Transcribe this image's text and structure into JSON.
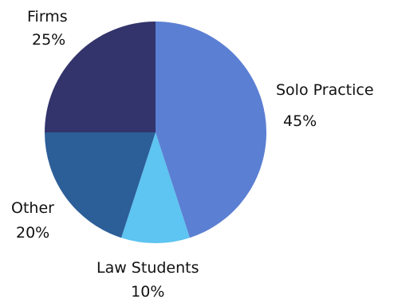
{
  "chart_data": {
    "type": "pie",
    "title": "",
    "slices": [
      {
        "label": "Solo Practice",
        "value": 45,
        "display": "45%",
        "color": "#5b7fd3"
      },
      {
        "label": "Law Students",
        "value": 10,
        "display": "10%",
        "color": "#5ec4f1"
      },
      {
        "label": "Other",
        "value": 20,
        "display": "20%",
        "color": "#2c5e98"
      },
      {
        "label": "Firms",
        "value": 25,
        "display": "25%",
        "color": "#33346b"
      }
    ]
  }
}
